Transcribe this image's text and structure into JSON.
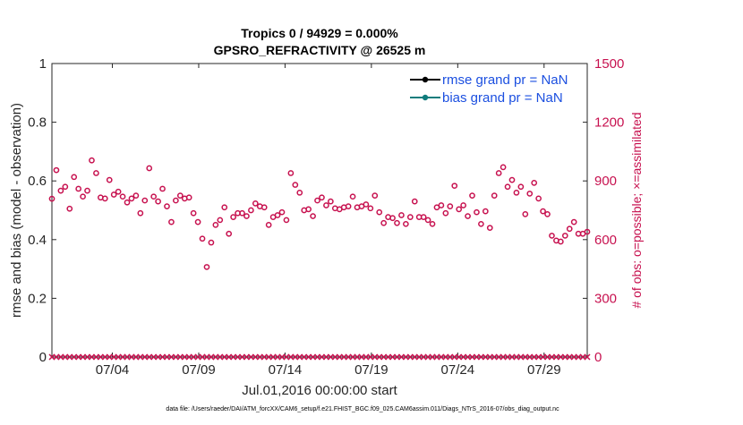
{
  "chart_data": {
    "type": "scatter",
    "title": "Tropics 0 / 94929 = 0.000%",
    "subtitle": "GPSRO_REFRACTIVITY @ 26525 m",
    "xlabel": "Jul.01,2016 00:00:00 start",
    "ylabel_left": "rmse and bias (model - observation)",
    "ylabel_right": "# of obs: o=possible; ×=assimilated",
    "footer": "data file: /Users/raeder/DAI/ATM_forcXX/CAM6_setup/f.e21.FHIST_BGC.f09_025.CAM6assim.011/Diags_NTrS_2016-07/obs_diag_output.nc",
    "x_range_days": [
      0,
      31
    ],
    "x_ticks": [
      {
        "day": 3.5,
        "label": "07/04"
      },
      {
        "day": 8.5,
        "label": "07/09"
      },
      {
        "day": 13.5,
        "label": "07/14"
      },
      {
        "day": 18.5,
        "label": "07/19"
      },
      {
        "day": 23.5,
        "label": "07/24"
      },
      {
        "day": 28.5,
        "label": "07/29"
      }
    ],
    "y_left": {
      "range": [
        0,
        1
      ],
      "ticks": [
        "0",
        "0.2",
        "0.4",
        "0.6",
        "0.8",
        "1"
      ]
    },
    "y_right": {
      "range": [
        0,
        1500
      ],
      "ticks": [
        "0",
        "300",
        "600",
        "900",
        "1200",
        "1500"
      ]
    },
    "legend": [
      {
        "label": "rmse grand pr = NaN",
        "color": "#000000"
      },
      {
        "label": "bias grand pr = NaN",
        "color": "#0f7c7c"
      }
    ],
    "series": [
      {
        "name": "possible obs",
        "marker": "circle",
        "color": "#c7114f",
        "axis": "right",
        "values": [
          809,
          955,
          850,
          870,
          758,
          920,
          860,
          820,
          850,
          1005,
          940,
          815,
          810,
          905,
          830,
          845,
          820,
          790,
          810,
          825,
          735,
          800,
          965,
          820,
          795,
          860,
          770,
          690,
          800,
          825,
          810,
          815,
          735,
          690,
          605,
          460,
          585,
          675,
          700,
          765,
          630,
          715,
          735,
          735,
          720,
          750,
          785,
          770,
          765,
          675,
          715,
          725,
          740,
          700,
          940,
          880,
          840,
          750,
          755,
          720,
          800,
          815,
          775,
          795,
          760,
          755,
          765,
          770,
          820,
          765,
          770,
          780,
          760,
          825,
          740,
          685,
          715,
          710,
          685,
          725,
          680,
          715,
          795,
          715,
          715,
          700,
          680,
          765,
          775,
          735,
          770,
          875,
          755,
          775,
          720,
          825,
          740,
          680,
          745,
          660,
          825,
          940,
          970,
          870,
          905,
          840,
          870,
          730,
          835,
          890,
          810,
          745,
          730,
          620,
          595,
          590,
          620,
          655,
          690,
          630,
          630,
          640
        ]
      },
      {
        "name": "assimilated obs",
        "marker": "x",
        "color": "#c7114f",
        "axis": "right",
        "values_note": "0 at every analysis time (122 times)"
      },
      {
        "name": "rmse",
        "color": "#000000",
        "axis": "left",
        "values_note": "NaN at all times (not plotted)"
      },
      {
        "name": "bias",
        "color": "#0f7c7c",
        "axis": "left",
        "values_note": "NaN at all times (not plotted)"
      }
    ]
  },
  "colors": {
    "obs": "#c7114f",
    "legend_text": "#1b4fe0",
    "rmse_line": "#000000",
    "bias_line": "#0f7c7c"
  }
}
